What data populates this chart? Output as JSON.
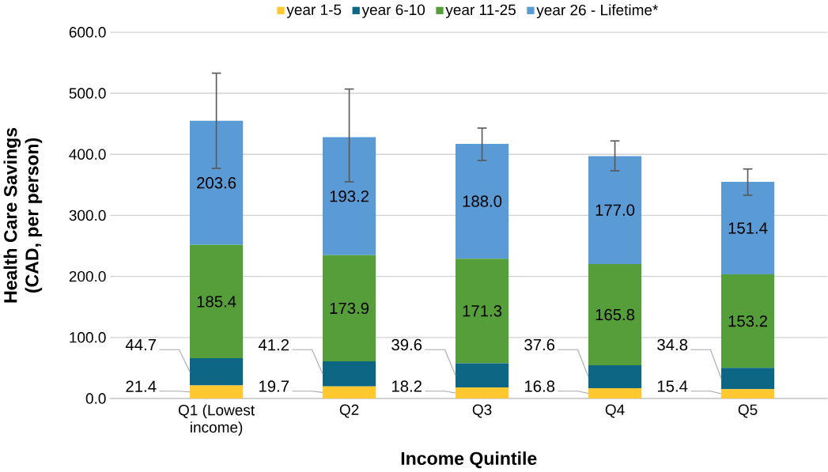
{
  "chart_data": {
    "type": "bar",
    "stacked": true,
    "xlabel": "Income Quintile",
    "ylabel": "Health Care Savings (CAD, per person)",
    "categories": [
      "Q1 (Lowest income)",
      "Q2",
      "Q3",
      "Q4",
      "Q5"
    ],
    "series": [
      {
        "name": "year 1-5",
        "color": "#ffc82e",
        "values": [
          21.4,
          19.7,
          18.2,
          16.8,
          15.4
        ],
        "value_labels": [
          "21.4",
          "19.7",
          "18.2",
          "16.8",
          "15.4"
        ]
      },
      {
        "name": "year 6-10",
        "color": "#0e6685",
        "values": [
          44.7,
          41.2,
          39.6,
          37.6,
          34.8
        ],
        "value_labels": [
          "44.7",
          "41.2",
          "39.6",
          "37.6",
          "34.8"
        ]
      },
      {
        "name": "year 11-25",
        "color": "#559e3a",
        "values": [
          185.4,
          173.9,
          171.3,
          165.8,
          153.2
        ],
        "value_labels": [
          "185.4",
          "173.9",
          "171.3",
          "165.8",
          "153.2"
        ]
      },
      {
        "name": "year 26 - Lifetime*",
        "color": "#5b9bd5",
        "values": [
          203.6,
          193.2,
          188.0,
          177.0,
          151.4
        ],
        "value_labels": [
          "203.6",
          "193.2",
          "188.0",
          "177.0",
          "151.4"
        ],
        "errors": [
          [
            377,
            533
          ],
          [
            355,
            507
          ],
          [
            390,
            443
          ],
          [
            373,
            422
          ],
          [
            333,
            376
          ]
        ]
      }
    ],
    "ylim": [
      0,
      600
    ],
    "yticks": [
      {
        "value": 0,
        "label": "0.0"
      },
      {
        "value": 100,
        "label": "100.0"
      },
      {
        "value": 200,
        "label": "200.0"
      },
      {
        "value": 300,
        "label": "300.0"
      },
      {
        "value": 400,
        "label": "400.0"
      },
      {
        "value": 500,
        "label": "500.0"
      },
      {
        "value": 600,
        "label": "600.0"
      }
    ],
    "grid": "y",
    "legend": "top"
  }
}
